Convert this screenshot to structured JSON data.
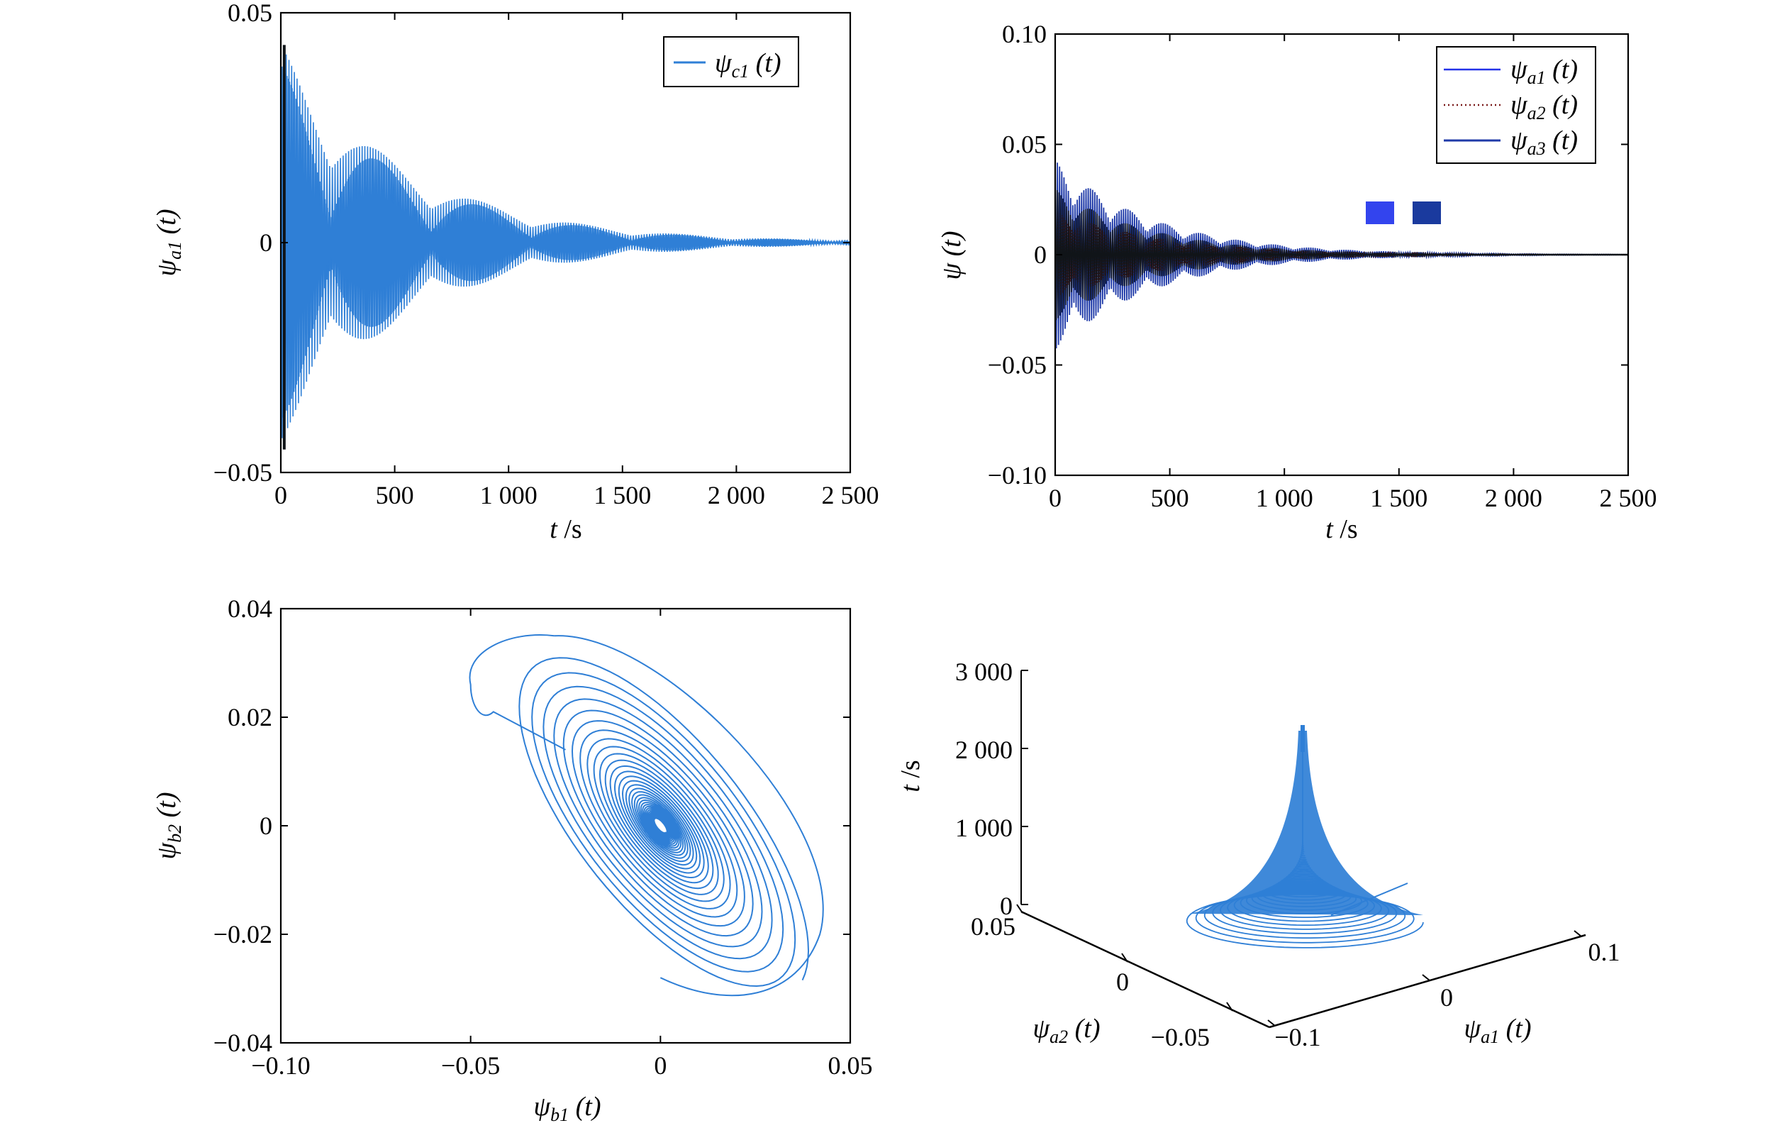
{
  "colors": {
    "trace": "#2f7fd6",
    "trace_dark": "#1f3aa8",
    "trace_black": "#101418",
    "axis": "#000000"
  },
  "chart_data": [
    {
      "type": "line",
      "id": "top-left",
      "xlim": [
        0,
        2500
      ],
      "ylim": [
        -0.05,
        0.05
      ],
      "xticks": [
        "0",
        "500",
        "1 000",
        "1 500",
        "2 000",
        "2 500"
      ],
      "yticks": [
        "0.05",
        "0",
        "−0.05"
      ],
      "xlabel": {
        "var": "t",
        "unit": " /s"
      },
      "ylabel": {
        "var": "ψ",
        "sub": "a1",
        "arg": " (t)"
      },
      "series": [
        {
          "legend": {
            "var": "ψ",
            "sub": "c1",
            "arg": " (t)"
          },
          "amplitude0": 0.043,
          "decay_time": 560,
          "beat_period": 440
        }
      ],
      "legend_position": "top-right"
    },
    {
      "type": "line",
      "id": "top-right",
      "xlim": [
        0,
        2500
      ],
      "ylim": [
        -0.1,
        0.1
      ],
      "xticks": [
        "0",
        "500",
        "1 000",
        "1 500",
        "2 000",
        "2 500"
      ],
      "yticks": [
        "0.10",
        "0.05",
        "0",
        "−0.05",
        "−0.10"
      ],
      "xlabel": {
        "var": "t",
        "unit": " /s"
      },
      "ylabel": {
        "var": "ψ",
        "arg": " (t)"
      },
      "series": [
        {
          "legend": {
            "var": "ψ",
            "sub": "a1",
            "arg": " (t)"
          },
          "style": "solid",
          "amplitude0": 0.043
        },
        {
          "legend": {
            "var": "ψ",
            "sub": "a2",
            "arg": " (t)"
          },
          "style": "dotted",
          "amplitude0": 0.02
        },
        {
          "legend": {
            "var": "ψ",
            "sub": "a3",
            "arg": " (t)"
          },
          "style": "solid",
          "amplitude0": 0.03
        }
      ],
      "legend_position": "top-right"
    },
    {
      "type": "line",
      "id": "bottom-left",
      "subtype": "phase-portrait",
      "xlim": [
        -0.1,
        0.05
      ],
      "ylim": [
        -0.04,
        0.04
      ],
      "xticks": [
        "−0.10",
        "−0.05",
        "0",
        "0.05"
      ],
      "yticks": [
        "0.04",
        "0.02",
        "0",
        "−0.02",
        "−0.04"
      ],
      "xlabel": {
        "var": "ψ",
        "sub": "b1",
        "arg": " (t)"
      },
      "ylabel": {
        "var": "ψ",
        "sub": "b2",
        "arg": " (t)"
      },
      "start_point": [
        -0.05,
        0.022
      ],
      "end_point": [
        0,
        0
      ]
    },
    {
      "type": "line",
      "id": "bottom-right",
      "subtype": "3d-trajectory",
      "zticks": [
        "3 000",
        "2 000",
        "1 000",
        "0"
      ],
      "zlabel": {
        "var": "t",
        "unit": " /s"
      },
      "x_ticks": [
        "−0.1",
        "0",
        "0.1"
      ],
      "x_label": {
        "var": "ψ",
        "sub": "a1",
        "arg": " (t)"
      },
      "y_ticks": [
        "−0.05",
        "0",
        "0.05"
      ],
      "y_label": {
        "var": "ψ",
        "sub": "a2",
        "arg": " (t)"
      },
      "zlim": [
        0,
        3000
      ]
    }
  ]
}
